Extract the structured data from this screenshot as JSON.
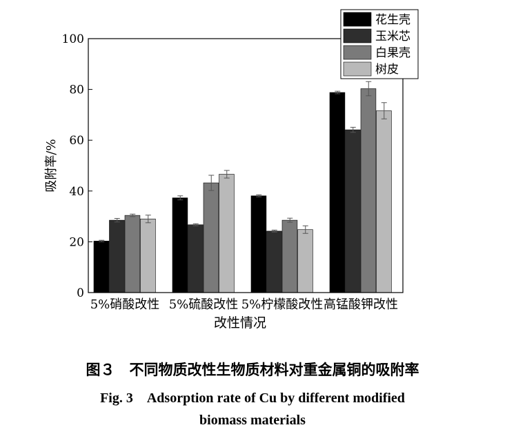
{
  "chart_data": {
    "type": "bar",
    "categories": [
      "5%硝酸改性",
      "5%硫酸改性",
      "5%柠檬酸改性",
      "高锰酸钾改性"
    ],
    "series": [
      {
        "name": "花生壳",
        "color": "#000000",
        "values": [
          20.3,
          37.3,
          38.1,
          78.8
        ],
        "errors": [
          0.3,
          0.8,
          0.4,
          0.5
        ]
      },
      {
        "name": "玉米芯",
        "color": "#2e2e2e",
        "values": [
          28.5,
          26.7,
          24.2,
          64.1
        ],
        "errors": [
          0.7,
          0.4,
          0.4,
          1.0
        ]
      },
      {
        "name": "白果壳",
        "color": "#7a7a7a",
        "values": [
          30.4,
          43.2,
          28.5,
          80.3
        ],
        "errors": [
          0.5,
          3.0,
          0.8,
          2.8
        ]
      },
      {
        "name": "树皮",
        "color": "#b9b9b9",
        "values": [
          29.0,
          46.6,
          24.8,
          71.6
        ],
        "errors": [
          1.5,
          1.5,
          1.5,
          3.2
        ]
      }
    ],
    "title": "",
    "xlabel": "改性情况",
    "ylabel": "吸附率/%",
    "ylim": [
      0,
      100
    ],
    "yticks": [
      0,
      20,
      40,
      60,
      80,
      100
    ],
    "legend_position": "top-right",
    "grid": false
  },
  "caption": {
    "chinese": "图３　不同物质改性生物质材料对重金属铜的吸附率",
    "english_line1": "Fig. 3　Adsorption rate of Cu by different modified",
    "english_line2": "biomass materials"
  }
}
